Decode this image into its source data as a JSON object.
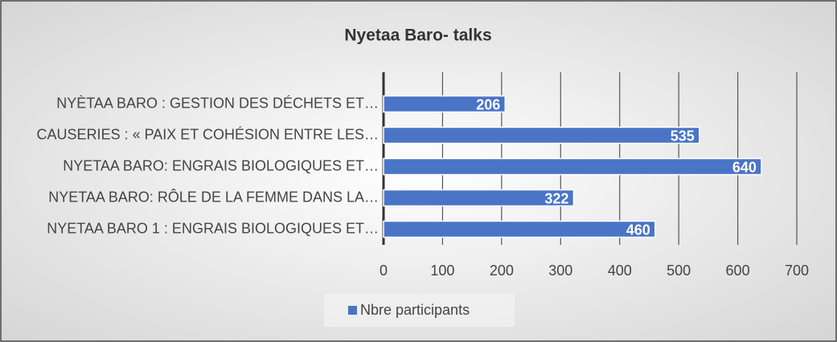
{
  "chart_data": {
    "type": "barh",
    "title": "Nyetaa Baro- talks",
    "categories": [
      "NYÈTAA BARO : GESTION DES DÉCHETS ET…",
      "CAUSERIES : « PAIX ET COHÉSION ENTRE LES…",
      "NYETAA BARO: ENGRAIS BIOLOGIQUES ET…",
      "NYETAA BARO: RÔLE DE LA FEMME DANS LA…",
      "NYETAA BARO 1 : ENGRAIS BIOLOGIQUES ET…"
    ],
    "series": [
      {
        "name": "Nbre participants",
        "color": "#4a74c6",
        "values": [
          206,
          535,
          640,
          322,
          460
        ]
      }
    ],
    "xlim": [
      0,
      700
    ],
    "xticks": [
      0,
      100,
      200,
      300,
      400,
      500,
      600,
      700
    ],
    "grid": true,
    "legend": "bottom",
    "data_labels": true
  }
}
